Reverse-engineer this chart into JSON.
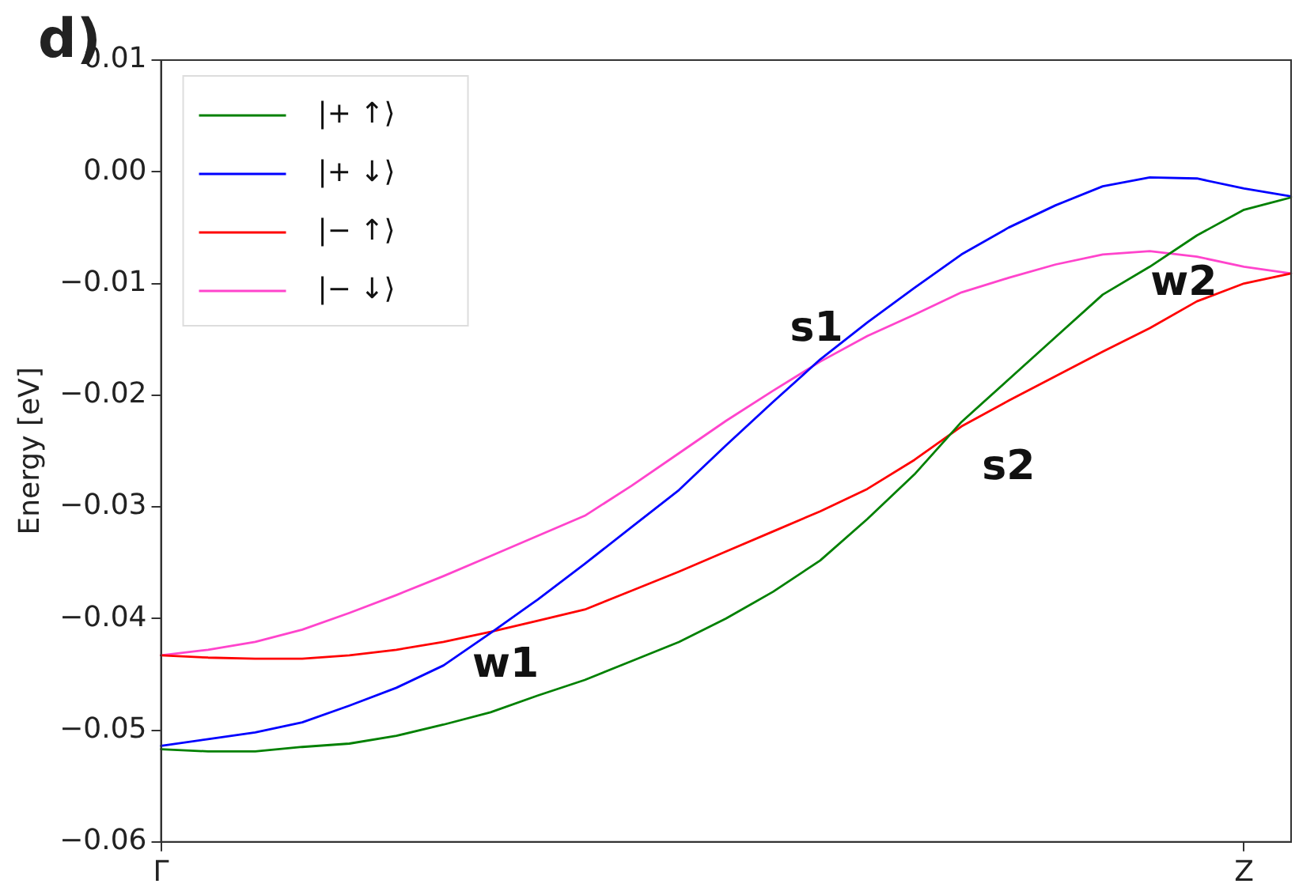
{
  "chart_data": {
    "type": "line",
    "ylabel": "Energy [eV]",
    "categories": [
      "Γ",
      null,
      null,
      null,
      null,
      null,
      null,
      null,
      null,
      null,
      null,
      null,
      null,
      null,
      null,
      null,
      null,
      null,
      null,
      null,
      null,
      null,
      null,
      "Z",
      null
    ],
    "ylim": [
      -0.06,
      0.01
    ],
    "yticks": [
      {
        "value": -0.06,
        "label": "−0.06"
      },
      {
        "value": -0.05,
        "label": "−0.05"
      },
      {
        "value": -0.04,
        "label": "−0.04"
      },
      {
        "value": -0.03,
        "label": "−0.03"
      },
      {
        "value": -0.02,
        "label": "−0.02"
      },
      {
        "value": -0.01,
        "label": "−0.01"
      },
      {
        "value": 0,
        "label": "0.00"
      },
      {
        "value": 0.01,
        "label": "0.01"
      }
    ],
    "legend": "top left",
    "marker": "none",
    "line_style": "solid",
    "series": [
      {
        "name": "|+ ↑⟩",
        "color": "#008000",
        "values": [
          -0.0517,
          -0.0519,
          -0.0519,
          -0.0515,
          -0.0512,
          -0.0505,
          -0.0495,
          -0.0484,
          -0.0469,
          -0.0455,
          -0.0438,
          -0.0421,
          -0.04,
          -0.0376,
          -0.0348,
          -0.0311,
          -0.0271,
          -0.0224,
          -0.0186,
          -0.0148,
          -0.011,
          -0.0085,
          -0.0057,
          -0.0034,
          -0.0023
        ]
      },
      {
        "name": "|+ ↓⟩",
        "color": "#0000ff",
        "values": [
          -0.0514,
          -0.0508,
          -0.0502,
          -0.0493,
          -0.0478,
          -0.0462,
          -0.0442,
          -0.0413,
          -0.0383,
          -0.0351,
          -0.0318,
          -0.0285,
          -0.0245,
          -0.0206,
          -0.0168,
          -0.0135,
          -0.0104,
          -0.0074,
          -0.005,
          -0.003,
          -0.0013,
          -0.0005,
          -0.0006,
          -0.0015,
          -0.0022
        ]
      },
      {
        "name": "|− ↑⟩",
        "color": "#ff0000",
        "values": [
          -0.0433,
          -0.0435,
          -0.0436,
          -0.0436,
          -0.0433,
          -0.0428,
          -0.0421,
          -0.0412,
          -0.0402,
          -0.0392,
          -0.0375,
          -0.0358,
          -0.034,
          -0.0322,
          -0.0304,
          -0.0284,
          -0.0258,
          -0.0228,
          -0.0205,
          -0.0183,
          -0.0161,
          -0.014,
          -0.0116,
          -0.01,
          -0.0091
        ]
      },
      {
        "name": "|− ↓⟩",
        "color": "#ff44cc",
        "values": [
          -0.0433,
          -0.0428,
          -0.0421,
          -0.041,
          -0.0395,
          -0.0379,
          -0.0362,
          -0.0344,
          -0.0326,
          -0.0308,
          -0.0281,
          -0.0252,
          -0.0223,
          -0.0196,
          -0.017,
          -0.0147,
          -0.0128,
          -0.0108,
          -0.0095,
          -0.0083,
          -0.0074,
          -0.0071,
          -0.0076,
          -0.0085,
          -0.0091
        ]
      }
    ],
    "annotations": [
      "d)",
      "w1",
      "s1",
      "s2",
      "w2"
    ]
  }
}
